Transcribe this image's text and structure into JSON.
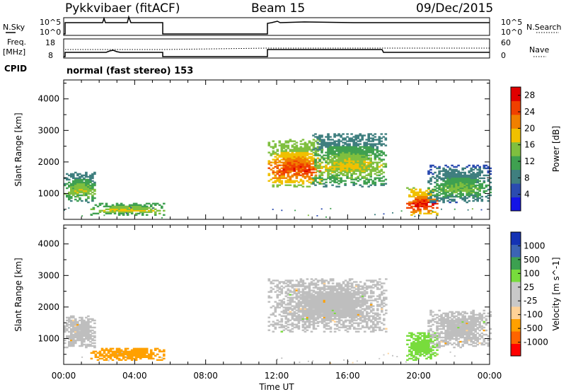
{
  "header": {
    "radar": "Pykkvibaer (fitACF)",
    "beam": "Beam 15",
    "date": "09/Dec/2015"
  },
  "info": {
    "nsky_label": "N.Sky",
    "nsearch_label": "N.Search",
    "freq_label": "Freq.",
    "freq_unit": "[MHz]",
    "nave_label": "Nave",
    "cpid_label": "CPID",
    "cpid_text": "normal (fast stereo) 153",
    "noise_ticks": [
      "10^5",
      "10^0"
    ],
    "freq_ticks": [
      "18",
      "8"
    ],
    "nave_ticks": [
      "60",
      "0"
    ]
  },
  "colors": {
    "power_scale": [
      "#1414e6",
      "#2b4bb0",
      "#3f7f7f",
      "#3fa050",
      "#7fbf3f",
      "#f0c000",
      "#f08000",
      "#f04000",
      "#e00000"
    ],
    "velocity_scale": [
      "#ff0000",
      "#ff6400",
      "#ffa000",
      "#ffd296",
      "#c8c8c8",
      "#c8c8c8",
      "#78dc3c",
      "#3ca050",
      "#3c64b4",
      "#1432b4"
    ],
    "ground_scatter": "#bebebe"
  },
  "chart_data": [
    {
      "type": "heatmap",
      "title": "Power",
      "xlabel": "Time UT",
      "ylabel": "Slant Range [km]",
      "xlim": [
        "00:00",
        "00:00"
      ],
      "x_ticks": [
        "00:00",
        "04:00",
        "08:00",
        "12:00",
        "16:00",
        "20:00",
        "00:00"
      ],
      "ylim": [
        180,
        4600
      ],
      "y_ticks": [
        1000,
        2000,
        3000,
        4000
      ],
      "colorbar": {
        "label": "Power [dB]",
        "ticks": [
          4,
          8,
          12,
          16,
          20,
          24,
          28
        ],
        "range": [
          0,
          30
        ]
      },
      "regions": [
        {
          "t": [
            0.0,
            1.8
          ],
          "range": [
            700,
            1700
          ],
          "dominant": 12,
          "peak": 18
        },
        {
          "t": [
            1.5,
            5.6
          ],
          "range": [
            300,
            700
          ],
          "dominant": 14,
          "peak": 20
        },
        {
          "t": [
            11.5,
            14.5
          ],
          "range": [
            1200,
            2700
          ],
          "dominant": 18,
          "peak": 28
        },
        {
          "t": [
            14.0,
            18.2
          ],
          "range": [
            1200,
            2900
          ],
          "dominant": 12,
          "peak": 20
        },
        {
          "t": [
            19.3,
            21.0
          ],
          "range": [
            300,
            1200
          ],
          "dominant": 20,
          "peak": 30
        },
        {
          "t": [
            20.5,
            24.0
          ],
          "range": [
            700,
            1900
          ],
          "dominant": 10,
          "peak": 16
        }
      ]
    },
    {
      "type": "heatmap",
      "title": "Velocity",
      "xlabel": "Time UT",
      "ylabel": "Slant Range [km]",
      "xlim": [
        "00:00",
        "00:00"
      ],
      "x_ticks": [
        "00:00",
        "04:00",
        "08:00",
        "12:00",
        "16:00",
        "20:00",
        "00:00"
      ],
      "ylim": [
        180,
        4600
      ],
      "y_ticks": [
        1000,
        2000,
        3000,
        4000
      ],
      "colorbar": {
        "label": "Velocity [m s^-1]",
        "ticks": [
          1000,
          500,
          100,
          25,
          -25,
          -100,
          -500,
          -1000
        ]
      },
      "regions": [
        {
          "t": [
            0.0,
            1.8
          ],
          "range": [
            700,
            1700
          ],
          "velocity": "ground scatter"
        },
        {
          "t": [
            1.5,
            5.6
          ],
          "range": [
            300,
            700
          ],
          "velocity": -300
        },
        {
          "t": [
            11.5,
            18.2
          ],
          "range": [
            1200,
            2900
          ],
          "velocity": "ground scatter"
        },
        {
          "t": [
            19.3,
            21.0
          ],
          "range": [
            300,
            1200
          ],
          "velocity": 200
        },
        {
          "t": [
            20.5,
            24.0
          ],
          "range": [
            700,
            1900
          ],
          "velocity": "ground scatter"
        }
      ]
    }
  ]
}
